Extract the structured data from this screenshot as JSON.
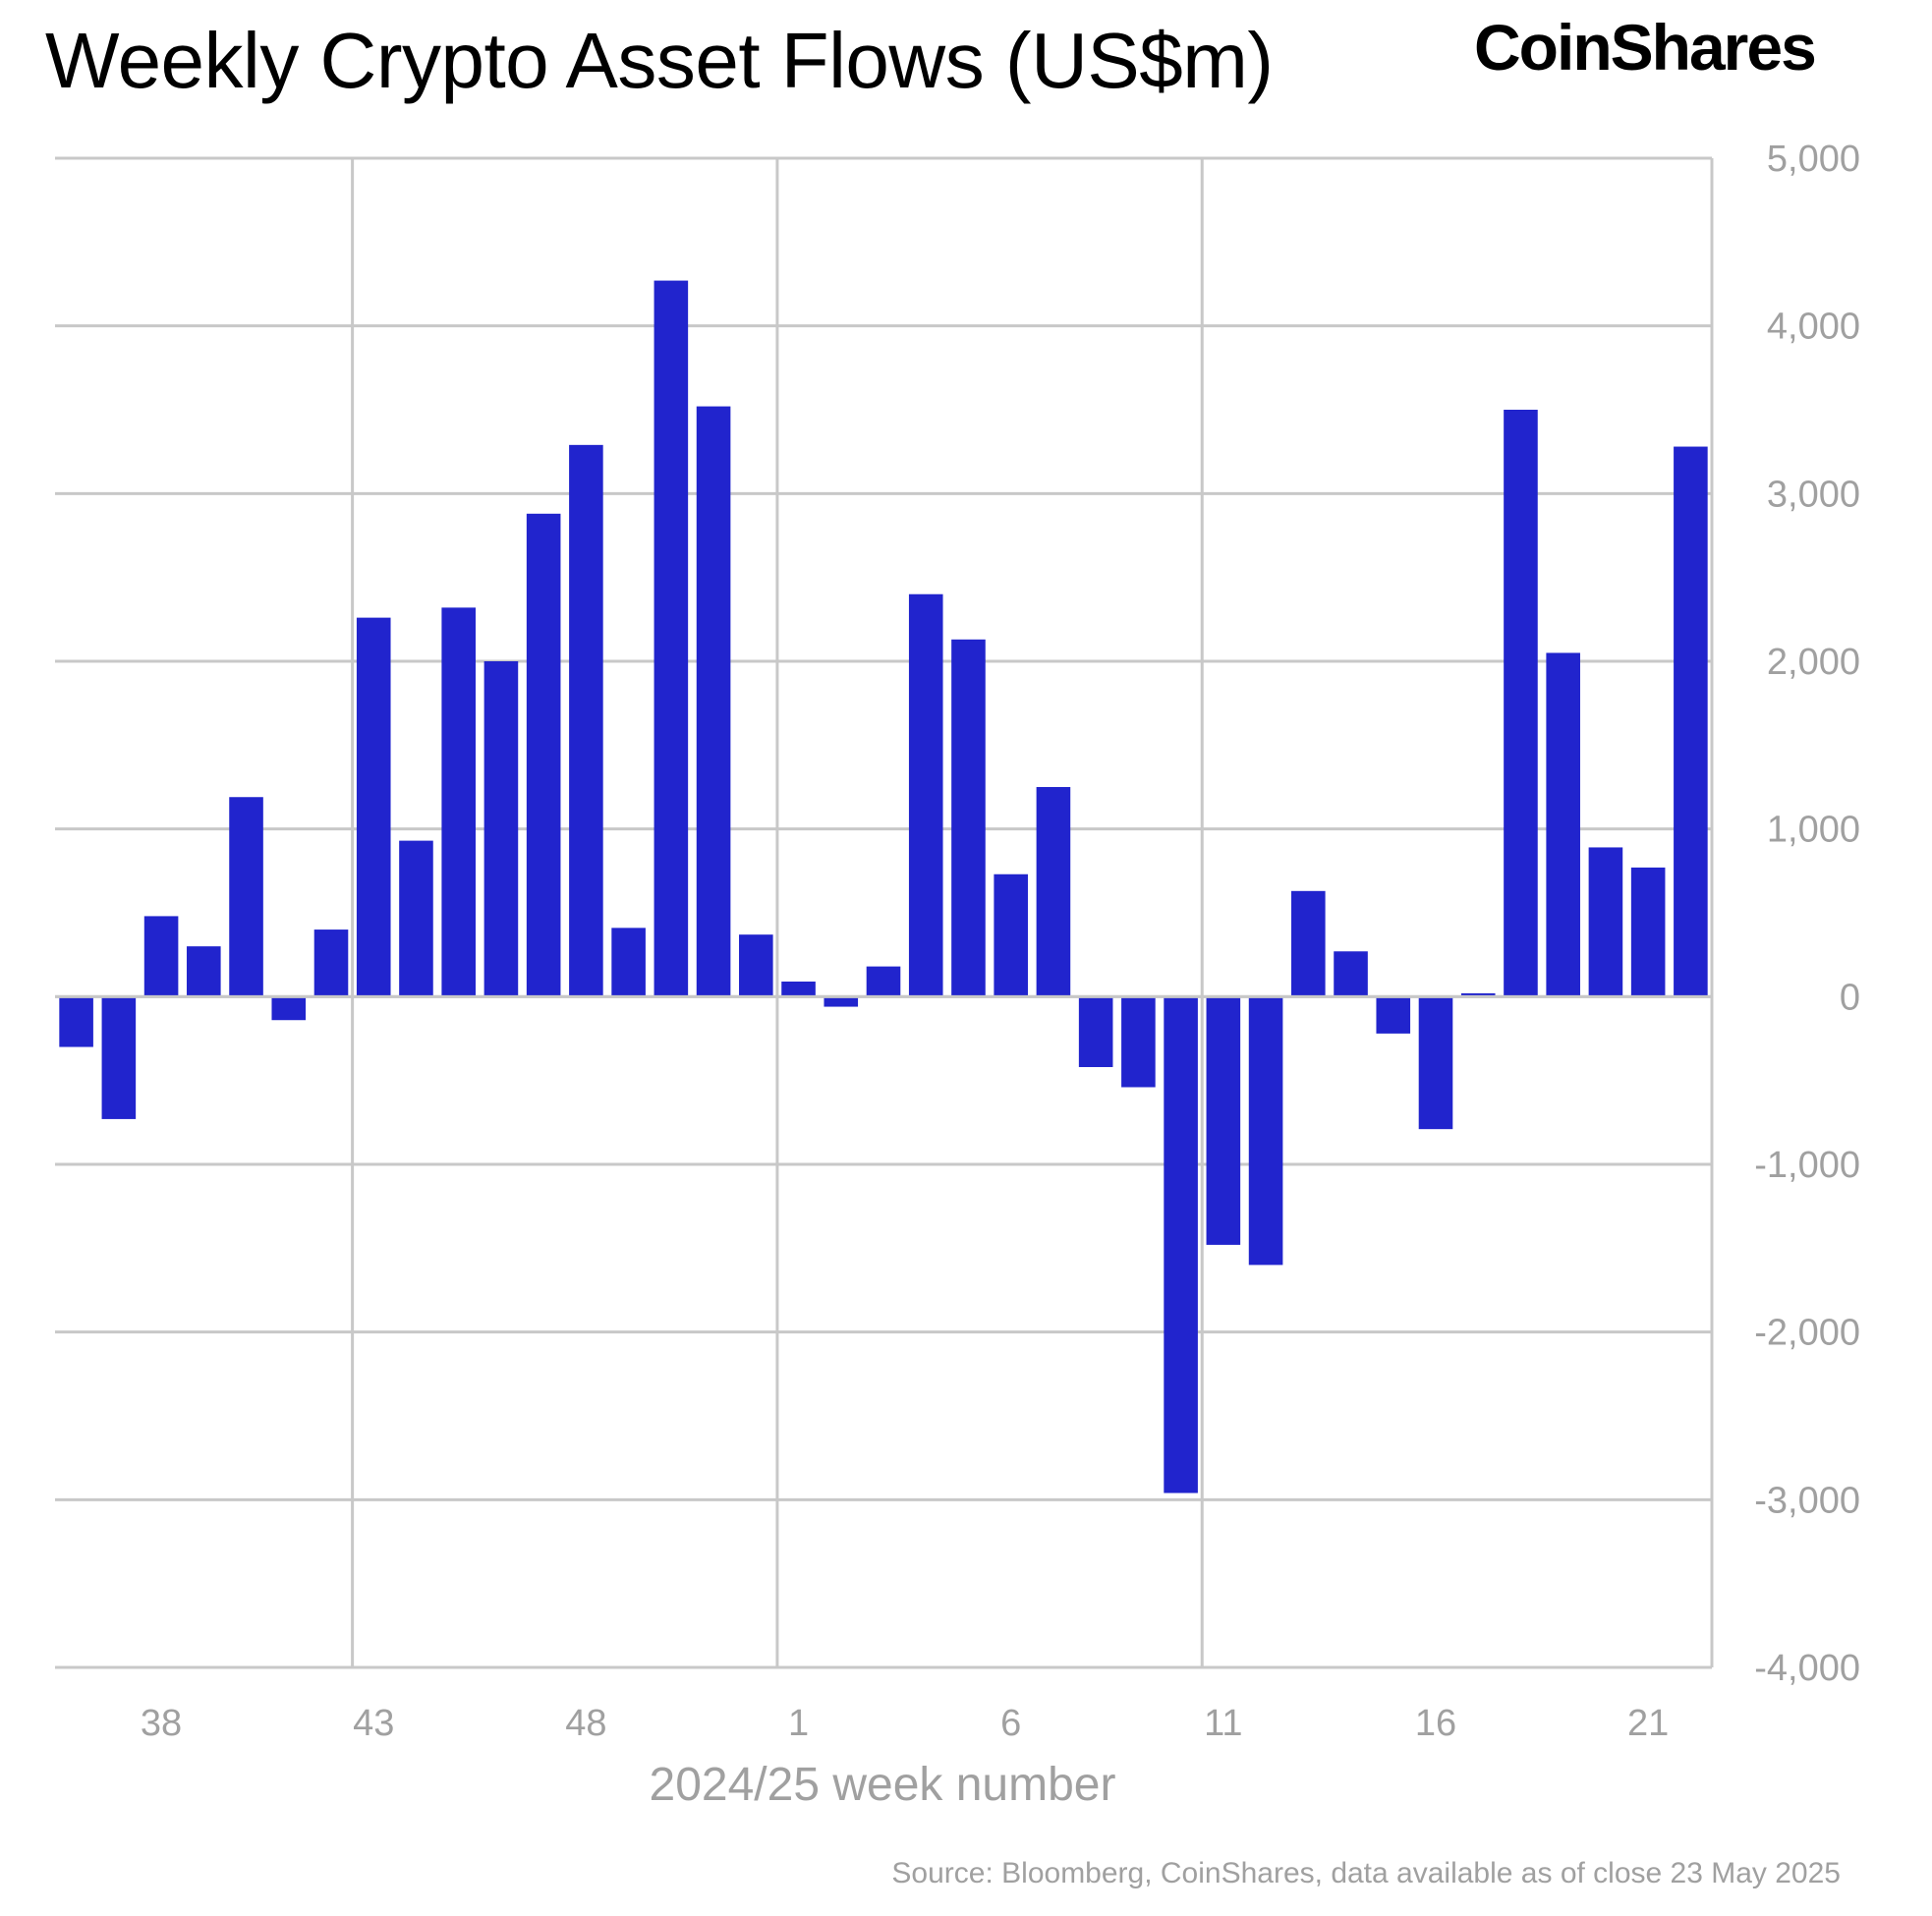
{
  "header": {
    "title": "Weekly Crypto Asset Flows (US$m)",
    "logo_text": "CoinShares"
  },
  "chart_data": {
    "type": "bar",
    "title": "Weekly Crypto Asset Flows (US$m)",
    "xlabel": "2024/25 week number",
    "ylabel": "",
    "ylim": [
      -4000,
      5000
    ],
    "yticks": [
      5000,
      4000,
      3000,
      2000,
      1000,
      0,
      -1000,
      -2000,
      -3000,
      -4000
    ],
    "ytick_labels": [
      "5,000",
      "4,000",
      "3,000",
      "2,000",
      "1,000",
      "0",
      "-1,000",
      "-2,000",
      "-3,000",
      "-4,000"
    ],
    "xtick_labels": [
      "38",
      "43",
      "48",
      "1",
      "6",
      "11",
      "16",
      "21"
    ],
    "xtick_weeks": [
      38,
      43,
      48,
      1,
      6,
      11,
      16,
      21
    ],
    "categories": [
      36,
      37,
      38,
      39,
      40,
      41,
      42,
      43,
      44,
      45,
      46,
      47,
      48,
      49,
      50,
      51,
      52,
      1,
      2,
      3,
      4,
      5,
      6,
      7,
      8,
      9,
      10,
      11,
      12,
      13,
      14,
      15,
      16,
      17,
      18,
      19,
      20,
      21,
      22
    ],
    "values": [
      -300,
      -730,
      480,
      300,
      1190,
      -140,
      400,
      2260,
      930,
      2320,
      2000,
      2880,
      3290,
      410,
      4270,
      3520,
      370,
      90,
      -60,
      180,
      2400,
      2130,
      730,
      1250,
      -420,
      -540,
      -2960,
      -1480,
      -1600,
      630,
      270,
      -220,
      -790,
      20,
      3500,
      2050,
      890,
      770,
      3280
    ],
    "bar_color": "#2124cd",
    "grid": true,
    "axis_position": "right",
    "legend": "none"
  },
  "footer": {
    "source": "Source: Bloomberg, CoinShares, data available as of close 23 May 2025"
  }
}
